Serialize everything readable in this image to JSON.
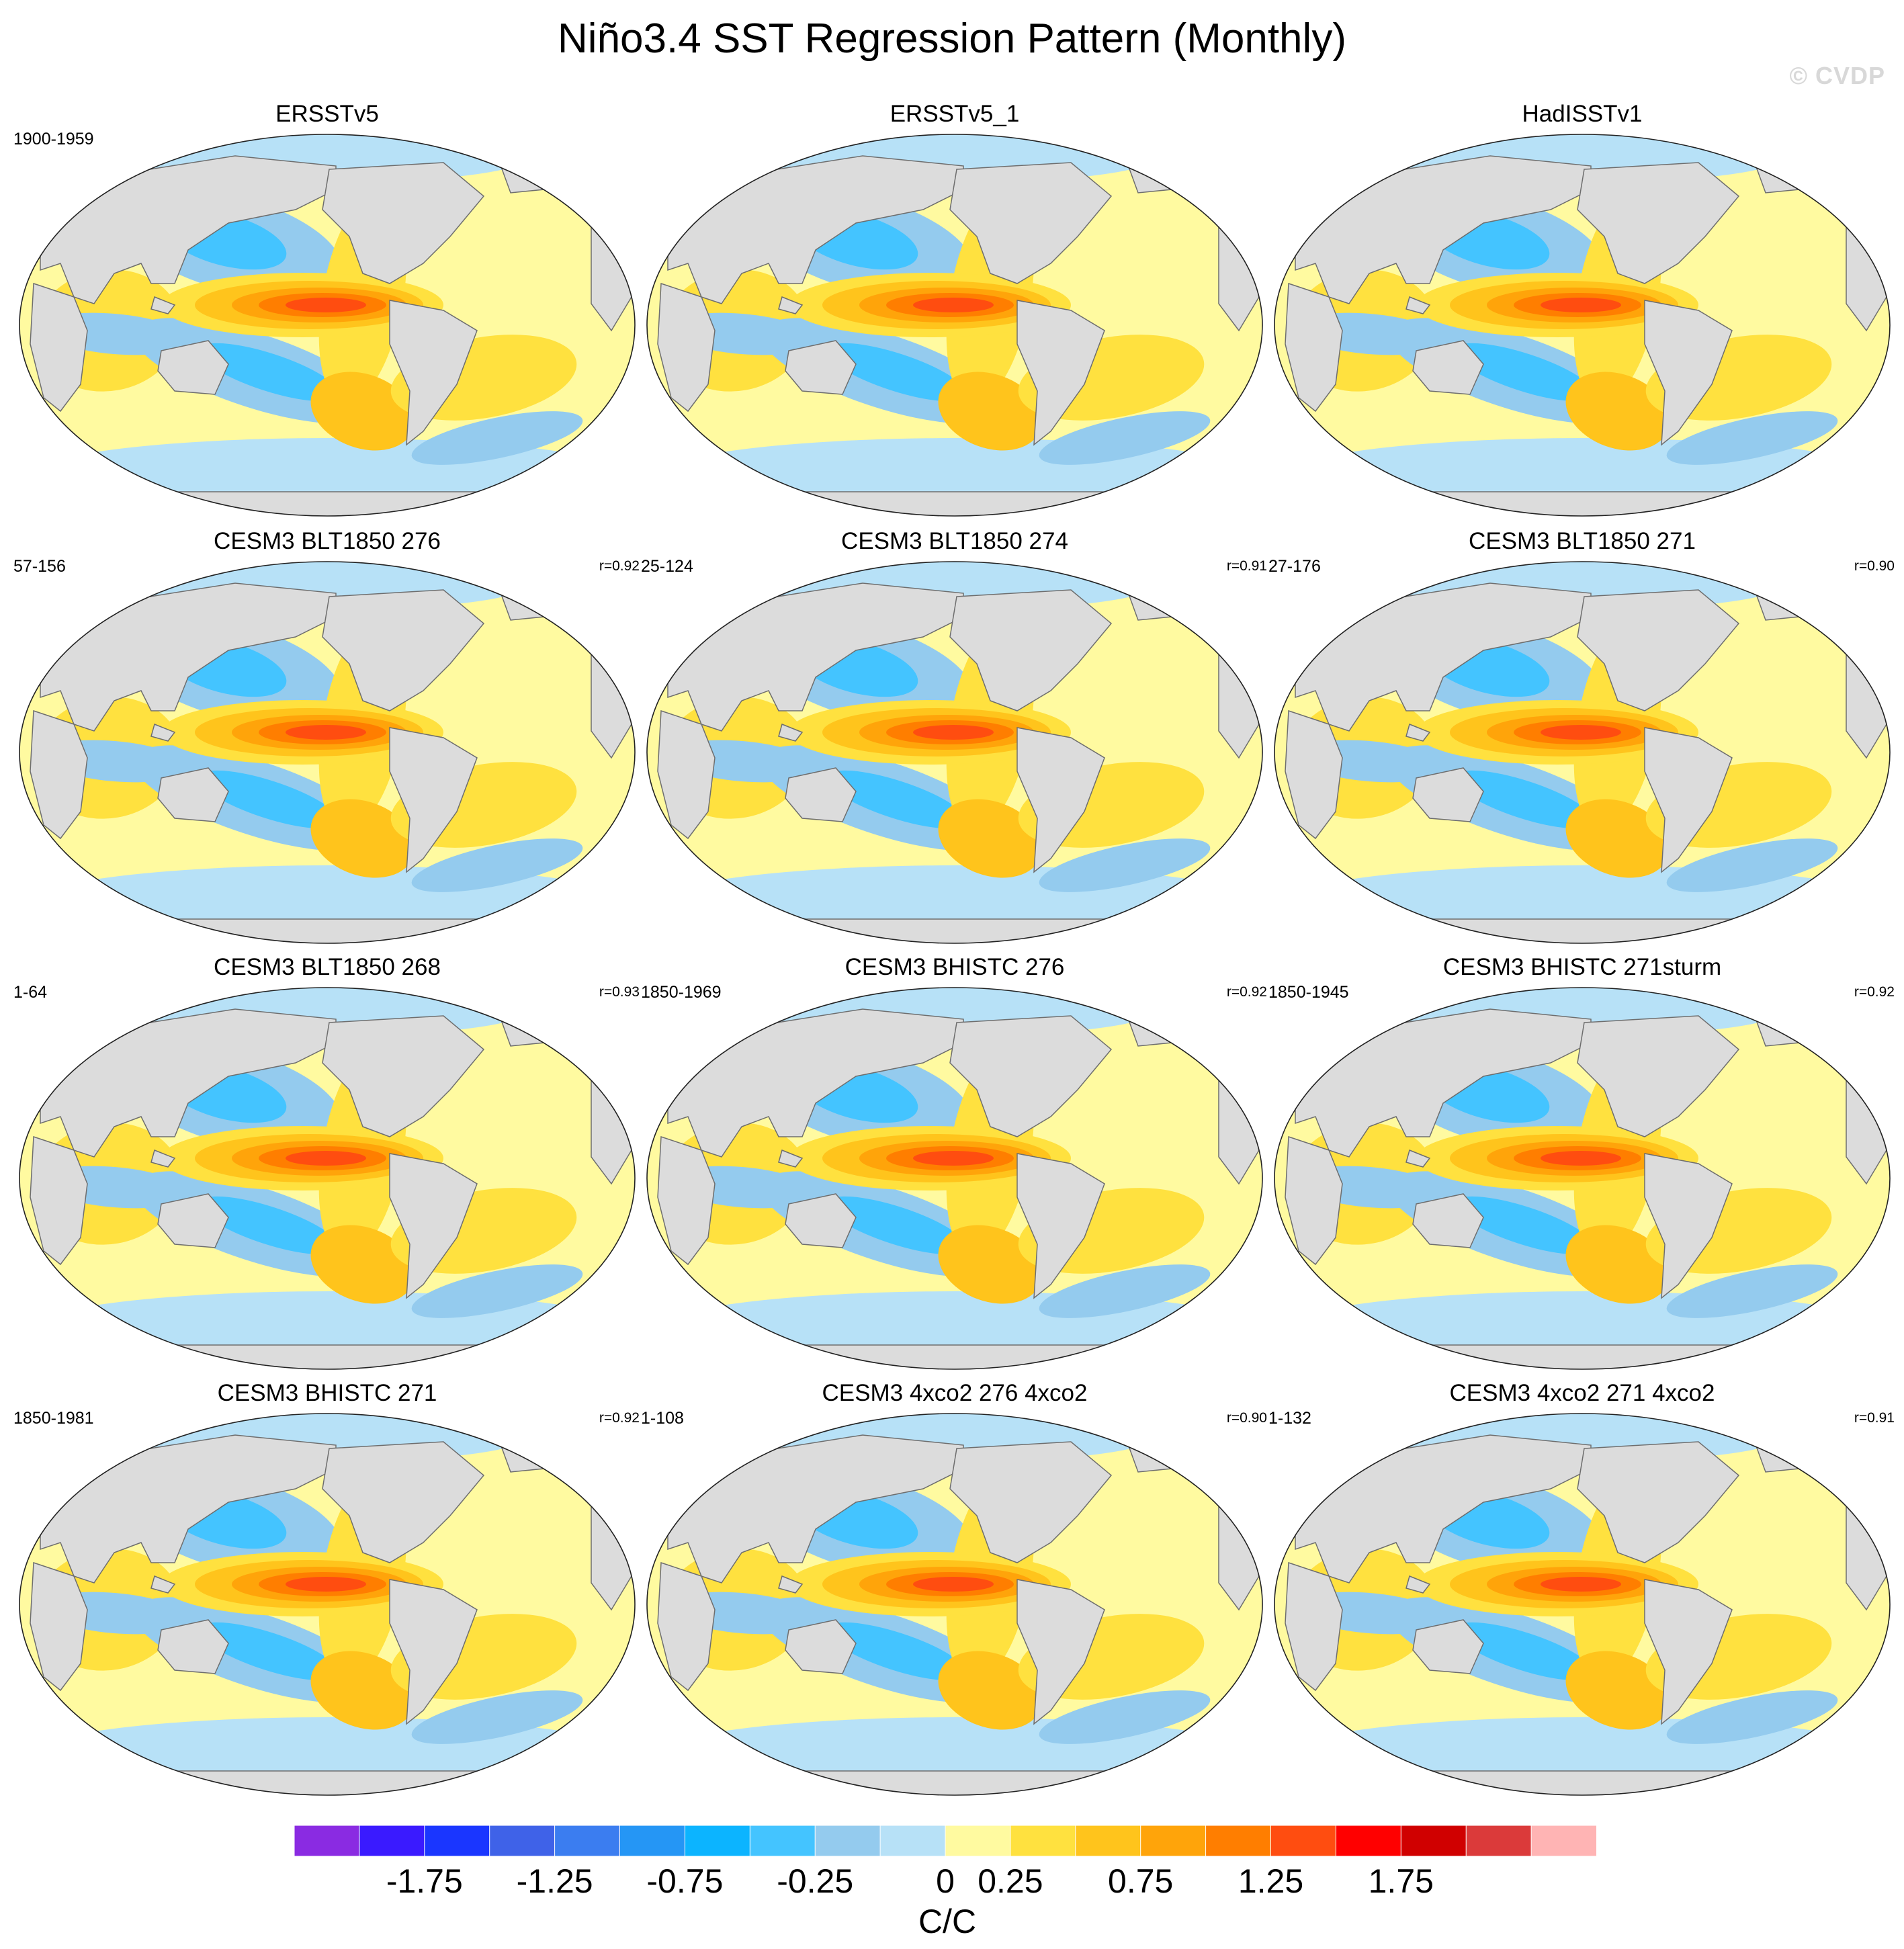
{
  "title": "Niño3.4 SST Regression Pattern (Monthly)",
  "watermark": "© CVDP",
  "panels": [
    {
      "title": "ERSSTv5",
      "period": "1900-1959",
      "r": ""
    },
    {
      "title": "ERSSTv5_1",
      "period": "",
      "r": ""
    },
    {
      "title": "HadISSTv1",
      "period": "",
      "r": ""
    },
    {
      "title": "CESM3 BLT1850 276",
      "period": "57-156",
      "r": "r=0.92"
    },
    {
      "title": "CESM3 BLT1850 274",
      "period": "25-124",
      "r": "r=0.91"
    },
    {
      "title": "CESM3 BLT1850 271",
      "period": "27-176",
      "r": "r=0.90"
    },
    {
      "title": "CESM3 BLT1850 268",
      "period": "1-64",
      "r": "r=0.93"
    },
    {
      "title": "CESM3 BHISTC 276",
      "period": "1850-1969",
      "r": "r=0.92"
    },
    {
      "title": "CESM3 BHISTC 271sturm",
      "period": "1850-1945",
      "r": "r=0.92"
    },
    {
      "title": "CESM3 BHISTC 271",
      "period": "1850-1981",
      "r": "r=0.92"
    },
    {
      "title": "CESM3 4xco2 276 4xco2",
      "period": "1-108",
      "r": "r=0.90"
    },
    {
      "title": "CESM3 4xco2 271 4xco2",
      "period": "1-132",
      "r": "r=0.91"
    }
  ],
  "colorbar": {
    "units": "C/C",
    "labels": [
      "-1.75",
      "-1.25",
      "-0.75",
      "-0.25",
      "0",
      "0.25",
      "0.75",
      "1.25",
      "1.75"
    ],
    "colors": [
      "#8a2be2",
      "#3a1aff",
      "#1a36ff",
      "#3f62e8",
      "#3b7df0",
      "#2596f5",
      "#0cb4ff",
      "#44c4ff",
      "#94cbee",
      "#b7e1f7",
      "#fffaa0",
      "#ffe13f",
      "#ffc41c",
      "#ffa40a",
      "#ff7e00",
      "#ff4d10",
      "#ff0000",
      "#d00000",
      "#db3a3a",
      "#ffb4b4"
    ],
    "colors_meaning": "20 contour bins from negative (purple/blue) to positive (yellow/red)"
  },
  "map_colors": {
    "land": "#dcdcdc",
    "coast": "#6e6e6e",
    "ocean_base": "#fffaa0"
  }
}
